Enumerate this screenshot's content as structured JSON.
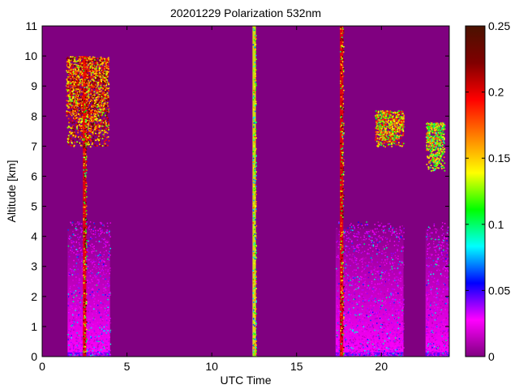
{
  "chart_data": {
    "type": "heatmap",
    "title": "20201229 Polarization 532nm",
    "xlabel": "UTC Time",
    "ylabel": "Altitude [km]",
    "xlim": [
      0,
      24
    ],
    "ylim": [
      0,
      11
    ],
    "xticks": [
      0,
      5,
      10,
      15,
      20
    ],
    "xtick_labels": [
      "0",
      "5",
      "10",
      "15",
      "20"
    ],
    "yticks": [
      0,
      1,
      2,
      3,
      4,
      5,
      6,
      7,
      8,
      9,
      10,
      11
    ],
    "ytick_labels": [
      "0",
      "1",
      "2",
      "3",
      "4",
      "5",
      "6",
      "7",
      "8",
      "9",
      "10",
      "11"
    ],
    "colorbar": {
      "range": [
        0,
        0.25
      ],
      "ticks": [
        0,
        0.05,
        0.1,
        0.15,
        0.2,
        0.25
      ],
      "tick_labels": [
        "0",
        "0.05",
        "0.1",
        "0.15",
        "0.2",
        "0.25"
      ],
      "colormap": [
        "#800080",
        "#ff00ff",
        "#0000ff",
        "#00ffff",
        "#00ff00",
        "#ffff00",
        "#ff8000",
        "#ff0000",
        "#800000",
        "#4a1200"
      ]
    },
    "background_color": "#800080",
    "measurement_segments": [
      {
        "start": 1.5,
        "end": 4.0
      },
      {
        "start": 12.4,
        "end": 12.6
      },
      {
        "start": 17.3,
        "end": 21.3
      },
      {
        "start": 22.6,
        "end": 24.0
      }
    ],
    "regions": [
      {
        "feature": "cloud",
        "x": [
          1.4,
          3.9
        ],
        "y": [
          7.0,
          10.0
        ],
        "value": 0.2
      },
      {
        "feature": "cloud",
        "x": [
          19.6,
          21.3
        ],
        "y": [
          7.0,
          8.2
        ],
        "value": 0.17
      },
      {
        "feature": "cloud",
        "x": [
          22.6,
          23.7
        ],
        "y": [
          6.2,
          7.8
        ],
        "value": 0.15
      },
      {
        "feature": "aerosol",
        "x": [
          1.5,
          4.0
        ],
        "y": [
          0,
          4.0
        ],
        "value": 0.02
      },
      {
        "feature": "aerosol",
        "x": [
          17.3,
          21.3
        ],
        "y": [
          0,
          4.0
        ],
        "value": 0.02
      },
      {
        "feature": "aerosol",
        "x": [
          22.6,
          24.0
        ],
        "y": [
          0,
          4.0
        ],
        "value": 0.02
      },
      {
        "feature": "streak",
        "x": [
          2.4,
          2.6
        ],
        "y": [
          0,
          10.0
        ],
        "value": 0.22
      },
      {
        "feature": "streak",
        "x": [
          12.4,
          12.6
        ],
        "y": [
          0,
          11.0
        ],
        "value": 0.15
      },
      {
        "feature": "streak",
        "x": [
          17.55,
          17.75
        ],
        "y": [
          0,
          11.0
        ],
        "value": 0.22
      }
    ]
  }
}
